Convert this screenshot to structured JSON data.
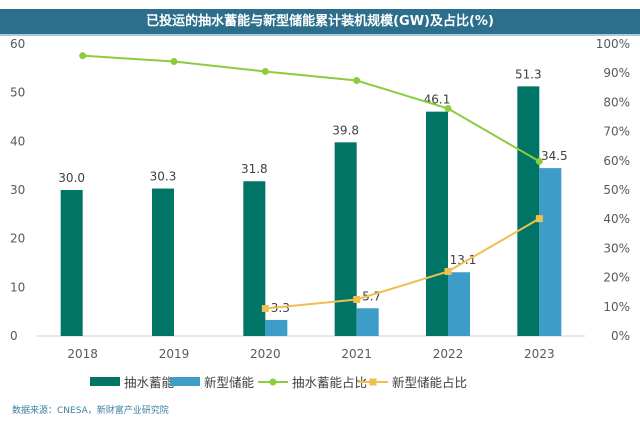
{
  "chart_data": {
    "type": "bar+line",
    "title": "已投运的抽水蓄能与新型储能累计装机规模(GW)及占比(%)",
    "categories": [
      "2018",
      "2019",
      "2020",
      "2021",
      "2022",
      "2023"
    ],
    "ylim": [
      0,
      60
    ],
    "yticks": [
      "0",
      "10",
      "20",
      "30",
      "40",
      "50",
      "60"
    ],
    "y2lim": [
      0,
      100
    ],
    "y2ticks": [
      "0%",
      "10%",
      "20%",
      "30%",
      "40%",
      "50%",
      "60%",
      "70%",
      "80%",
      "90%",
      "100%"
    ],
    "grid": false,
    "legend": "bottom",
    "series": [
      {
        "name": "抽水蓄能",
        "type": "bar",
        "color": "#007566",
        "values": [
          30.0,
          30.3,
          31.8,
          39.8,
          46.1,
          51.3
        ],
        "labels": [
          "30.0",
          "30.3",
          "31.8",
          "39.8",
          "46.1",
          "51.3"
        ]
      },
      {
        "name": "新型储能",
        "type": "bar",
        "color": "#3d9cc8",
        "values": [
          null,
          null,
          3.3,
          5.7,
          13.1,
          34.5
        ],
        "labels": [
          "",
          "",
          "3.3",
          "5.7",
          "13.1",
          "34.5"
        ]
      },
      {
        "name": "抽水蓄能占比",
        "type": "line",
        "axis": "right",
        "color": "#8dcc3e",
        "marker": "circle",
        "values": [
          96,
          94,
          90.6,
          87.5,
          77.9,
          59.8
        ]
      },
      {
        "name": "新型储能占比",
        "type": "line",
        "axis": "right",
        "color": "#f0bf50",
        "marker": "square",
        "values": [
          null,
          null,
          9.4,
          12.5,
          22.1,
          40.2
        ]
      }
    ]
  },
  "source": "数据来源：CNESA，新财富产业研究院"
}
